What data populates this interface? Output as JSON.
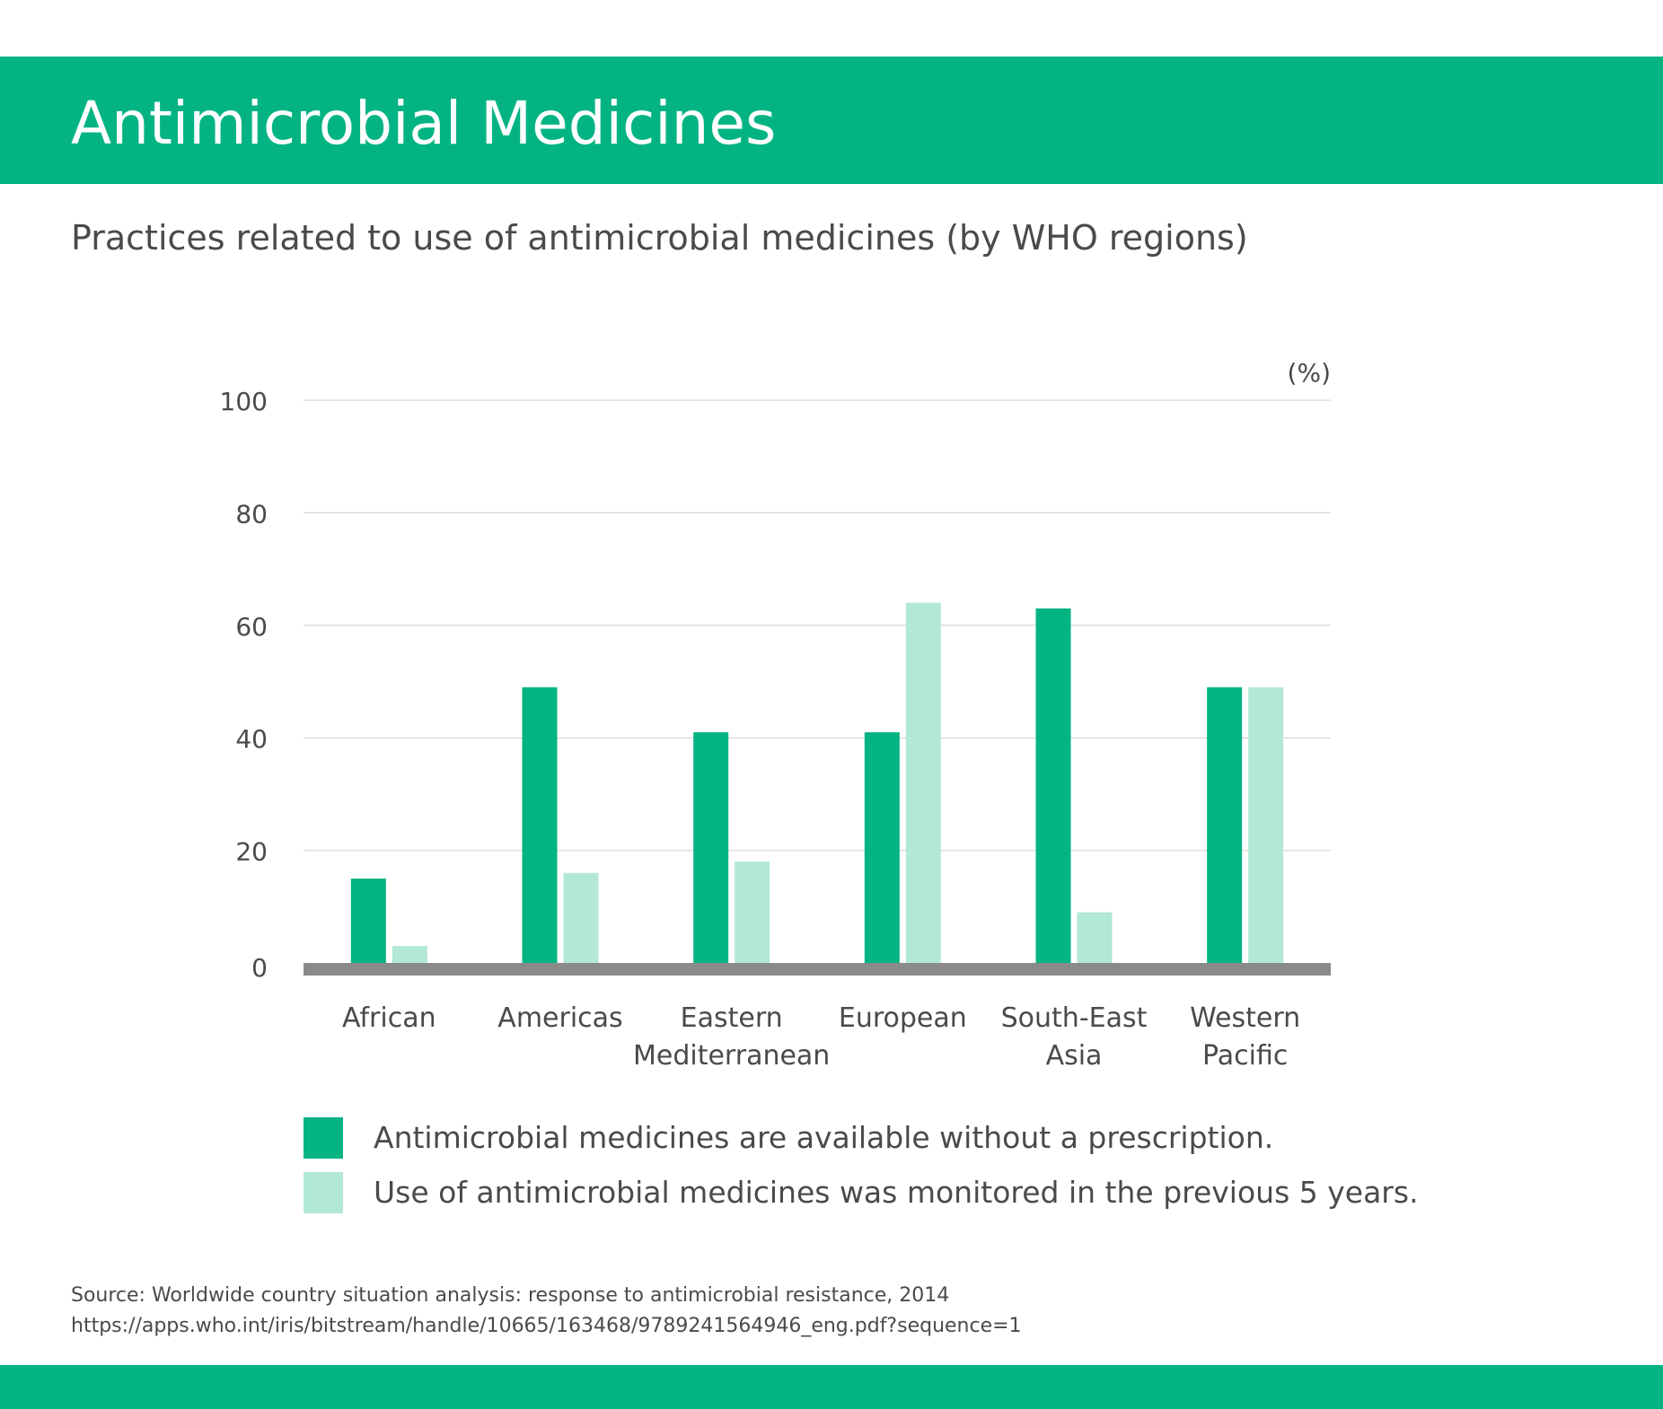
{
  "header": {
    "title": "Antimicrobial Medicines"
  },
  "subtitle": "Practices related to use of antimicrobial medicines (by WHO regions)",
  "colors": {
    "brand": "#03b482",
    "series_dark": "#04b482",
    "series_light": "#b2e8d8",
    "baseline": "#8a8a8a",
    "grid": "#dddddd"
  },
  "chart_data": {
    "type": "bar",
    "unit_label": "(%)",
    "ylim": [
      0,
      100
    ],
    "yticks": [
      0,
      20,
      40,
      60,
      80,
      100
    ],
    "grid": true,
    "legend_position": "bottom",
    "categories": [
      [
        "African"
      ],
      [
        "Americas"
      ],
      [
        "Eastern",
        "Mediterranean"
      ],
      [
        "European"
      ],
      [
        "South-East",
        "Asia"
      ],
      [
        "Western",
        "Pacific"
      ]
    ],
    "series": [
      {
        "name": "Antimicrobial medicines are available without a prescription.",
        "color": "#04b482",
        "values": [
          15,
          49,
          41,
          41,
          63,
          49
        ]
      },
      {
        "name": "Use of antimicrobial medicines was monitored in the previous 5 years.",
        "color": "#b2e8d8",
        "values": [
          3,
          16,
          18,
          64,
          9,
          49
        ]
      }
    ]
  },
  "source": {
    "line1": "Source: Worldwide country situation analysis: response to antimicrobial resistance, 2014",
    "line2": "https://apps.who.int/iris/bitstream/handle/10665/163468/9789241564946_eng.pdf?sequence=1"
  }
}
